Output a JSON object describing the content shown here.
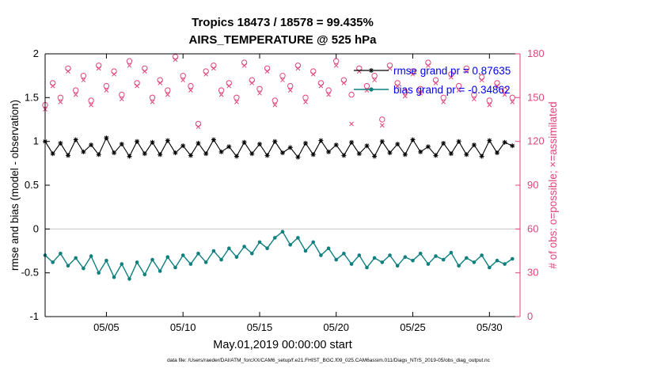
{
  "title_line1": "Tropics 18473 / 18578 = 99.435%",
  "title_line2": "AIRS_TEMPERATURE @ 525 hPa",
  "legend": {
    "rmse_label": "rmse grand pr = 0.87635",
    "bias_label": "bias grand pr = -0.34862"
  },
  "axes": {
    "left_label": "rmse and bias (model - observation)",
    "right_label": "# of obs: o=possible; ×=assimilated",
    "x_label": "May.01,2019 00:00:00 start",
    "left_ticks": [
      {
        "v": -1,
        "label": "-1"
      },
      {
        "v": -0.5,
        "label": "-0.5"
      },
      {
        "v": 0,
        "label": "0"
      },
      {
        "v": 0.5,
        "label": "0.5"
      },
      {
        "v": 1,
        "label": "1"
      },
      {
        "v": 1.5,
        "label": "1.5"
      },
      {
        "v": 2,
        "label": "2"
      }
    ],
    "right_ticks": [
      {
        "v": 0,
        "label": "0"
      },
      {
        "v": 30,
        "label": "30"
      },
      {
        "v": 60,
        "label": "60"
      },
      {
        "v": 90,
        "label": "90"
      },
      {
        "v": 120,
        "label": "120"
      },
      {
        "v": 150,
        "label": "150"
      },
      {
        "v": 180,
        "label": "180"
      }
    ],
    "x_ticks": [
      {
        "day": 5,
        "label": "05/05"
      },
      {
        "day": 10,
        "label": "05/10"
      },
      {
        "day": 15,
        "label": "05/15"
      },
      {
        "day": 20,
        "label": "05/20"
      },
      {
        "day": 25,
        "label": "05/25"
      },
      {
        "day": 30,
        "label": "05/30"
      }
    ]
  },
  "footer": "data file: /Users/raeder/DAI/ATM_forcXX/CAM6_setup/f.e21.FHIST_BGC.f09_025.CAM6assim.011/Diags_NTrS_2019-05/obs_diag_output.nc",
  "colors": {
    "rmse": "#000000",
    "bias": "#0f7f7f",
    "obs": "#e0457b",
    "legend_text": "#0000ee",
    "zero_line": "#cccccc",
    "axis": "#000000"
  },
  "chart_data": {
    "type": "line",
    "title": "Tropics 18473 / 18578 = 99.435% — AIRS_TEMPERATURE @ 525 hPa",
    "xlabel": "May.01,2019 00:00:00 start",
    "ylabel_left": "rmse and bias (model - observation)",
    "ylabel_right": "# of obs: o=possible; ×=assimilated",
    "ylim_left": [
      -1,
      2
    ],
    "ylim_right": [
      0,
      180
    ],
    "x_range_days": [
      1,
      32
    ],
    "x_start_day": 1,
    "x_step_days": 0.5,
    "grand_rmse": 0.87635,
    "grand_bias": -0.34862,
    "zero_line": 0,
    "series": [
      {
        "name": "rmse",
        "axis": "left",
        "marker": "asterisk",
        "connect": true,
        "values": [
          1.0,
          0.86,
          0.98,
          0.84,
          1.02,
          0.88,
          0.96,
          0.85,
          1.04,
          0.87,
          0.97,
          0.83,
          1.0,
          0.86,
          0.99,
          0.85,
          1.01,
          0.87,
          0.95,
          0.84,
          0.98,
          0.86,
          1.02,
          0.88,
          0.94,
          0.83,
          0.99,
          0.86,
          0.97,
          0.84,
          1.0,
          0.87,
          0.93,
          0.82,
          0.98,
          0.85,
          1.01,
          0.88,
          0.96,
          0.84,
          0.99,
          0.86,
          0.95,
          0.83,
          1.0,
          0.87,
          0.97,
          0.85,
          1.02,
          0.88,
          0.94,
          0.84,
          0.98,
          0.86,
          1.0,
          0.85,
          0.96,
          0.83,
          1.01,
          0.87,
          0.99,
          0.95
        ]
      },
      {
        "name": "bias",
        "axis": "left",
        "marker": "dot",
        "connect": true,
        "values": [
          -0.3,
          -0.38,
          -0.28,
          -0.42,
          -0.33,
          -0.45,
          -0.31,
          -0.5,
          -0.36,
          -0.55,
          -0.4,
          -0.57,
          -0.38,
          -0.52,
          -0.35,
          -0.48,
          -0.32,
          -0.44,
          -0.3,
          -0.4,
          -0.28,
          -0.38,
          -0.25,
          -0.35,
          -0.22,
          -0.32,
          -0.2,
          -0.28,
          -0.15,
          -0.22,
          -0.1,
          -0.03,
          -0.18,
          -0.1,
          -0.25,
          -0.15,
          -0.3,
          -0.22,
          -0.35,
          -0.28,
          -0.4,
          -0.3,
          -0.44,
          -0.33,
          -0.38,
          -0.3,
          -0.42,
          -0.32,
          -0.36,
          -0.28,
          -0.4,
          -0.31,
          -0.35,
          -0.27,
          -0.42,
          -0.33,
          -0.38,
          -0.3,
          -0.44,
          -0.36,
          -0.4,
          -0.34
        ]
      },
      {
        "name": "possible",
        "axis": "right",
        "marker": "open-circle",
        "connect": false,
        "values": [
          145,
          160,
          150,
          170,
          155,
          165,
          148,
          172,
          158,
          168,
          152,
          175,
          160,
          170,
          150,
          162,
          155,
          178,
          165,
          158,
          132,
          168,
          172,
          155,
          160,
          150,
          174,
          162,
          156,
          170,
          148,
          165,
          158,
          172,
          150,
          168,
          160,
          155,
          175,
          162,
          152,
          170,
          158,
          165,
          135,
          172,
          160,
          154,
          168,
          156,
          174,
          162,
          150,
          166,
          158,
          170,
          152,
          164,
          148,
          160,
          155,
          150
        ]
      },
      {
        "name": "assimilated",
        "axis": "right",
        "marker": "x",
        "connect": false,
        "values": [
          142,
          158,
          147,
          168,
          152,
          162,
          145,
          170,
          155,
          166,
          149,
          172,
          158,
          168,
          147,
          160,
          152,
          176,
          162,
          155,
          130,
          166,
          170,
          152,
          158,
          147,
          172,
          160,
          153,
          168,
          145,
          162,
          155,
          170,
          147,
          166,
          158,
          152,
          172,
          160,
          132,
          168,
          155,
          162,
          131,
          170,
          158,
          151,
          166,
          153,
          172,
          160,
          147,
          164,
          155,
          168,
          149,
          162,
          145,
          158,
          152,
          147
        ]
      }
    ]
  }
}
